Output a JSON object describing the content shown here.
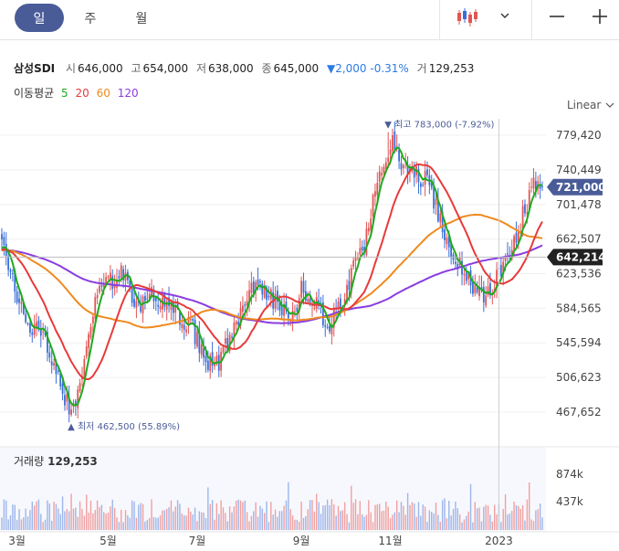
{
  "toolbar": {
    "periods": [
      {
        "label": "일",
        "active": true
      },
      {
        "label": "주",
        "active": false
      },
      {
        "label": "월",
        "active": false
      }
    ],
    "icons": [
      "candlestick-icon",
      "chevron-down-icon",
      "zoom-out-icon",
      "zoom-in-icon"
    ]
  },
  "quote": {
    "name": "삼성SDI",
    "open_label": "시",
    "open": "646,000",
    "high_label": "고",
    "high": "654,000",
    "low_label": "저",
    "low": "638,000",
    "close_label": "종",
    "close": "645,000",
    "change": "▼2,000 -0.31%",
    "volume_label": "거",
    "volume": "129,253"
  },
  "ma": {
    "label": "이동평균",
    "periods": [
      {
        "label": "5",
        "color": "#1faa1f"
      },
      {
        "label": "20",
        "color": "#e83a3a"
      },
      {
        "label": "60",
        "color": "#ef8a1e"
      },
      {
        "label": "120",
        "color": "#8a3de0"
      }
    ]
  },
  "scale_type": "Linear",
  "volume_panel": {
    "label": "거래량",
    "value": "129,253"
  },
  "colors": {
    "up": "#e25555",
    "down": "#3a6fd8",
    "tag_price": "#4a5c98",
    "tag_crosshair": "#222222",
    "accent": "#4a5c98"
  },
  "chart_data": {
    "type": "candlestick",
    "price_axis": {
      "ticks": [
        779420,
        740449,
        701478,
        662507,
        623536,
        584565,
        545594,
        506623,
        467652
      ],
      "tick_labels": [
        "779,420",
        "740,449",
        "701,478",
        "662,507",
        "623,536",
        "584,565",
        "545,594",
        "506,623",
        "467,652"
      ],
      "range": [
        448000,
        798000
      ]
    },
    "volume_axis": {
      "ticks": [
        874000,
        437000
      ],
      "tick_labels": [
        "874k",
        "437k"
      ]
    },
    "x_axis": {
      "tick_labels": [
        "3월",
        "5월",
        "7월",
        "9월",
        "11월",
        "2023"
      ],
      "tick_index": [
        7,
        49,
        90,
        138,
        179,
        229
      ]
    },
    "last_price_tag": {
      "value": 721000,
      "label": "721,000"
    },
    "crosshair_tag": {
      "value": 642214,
      "label": "642,214"
    },
    "annotations": [
      {
        "type": "high",
        "label": "▼ 최고 783,000 (-7.92%)",
        "value": 783000
      },
      {
        "type": "low",
        "label": "▲ 최저 462,500 (55.89%)",
        "value": 462500
      }
    ],
    "close_anchors": [
      {
        "i": 0,
        "v": 662000
      },
      {
        "i": 4,
        "v": 620000
      },
      {
        "i": 10,
        "v": 575000
      },
      {
        "i": 16,
        "v": 560000
      },
      {
        "i": 22,
        "v": 535000
      },
      {
        "i": 28,
        "v": 490000
      },
      {
        "i": 32,
        "v": 470000
      },
      {
        "i": 38,
        "v": 520000
      },
      {
        "i": 44,
        "v": 600000
      },
      {
        "i": 50,
        "v": 615000
      },
      {
        "i": 55,
        "v": 625000
      },
      {
        "i": 60,
        "v": 600000
      },
      {
        "i": 64,
        "v": 585000
      },
      {
        "i": 70,
        "v": 600000
      },
      {
        "i": 76,
        "v": 590000
      },
      {
        "i": 82,
        "v": 575000
      },
      {
        "i": 88,
        "v": 560000
      },
      {
        "i": 95,
        "v": 525000
      },
      {
        "i": 100,
        "v": 525000
      },
      {
        "i": 105,
        "v": 550000
      },
      {
        "i": 110,
        "v": 580000
      },
      {
        "i": 115,
        "v": 605000
      },
      {
        "i": 120,
        "v": 610000
      },
      {
        "i": 128,
        "v": 585000
      },
      {
        "i": 133,
        "v": 570000
      },
      {
        "i": 138,
        "v": 605000
      },
      {
        "i": 144,
        "v": 595000
      },
      {
        "i": 150,
        "v": 565000
      },
      {
        "i": 157,
        "v": 590000
      },
      {
        "i": 163,
        "v": 640000
      },
      {
        "i": 168,
        "v": 665000
      },
      {
        "i": 172,
        "v": 715000
      },
      {
        "i": 176,
        "v": 750000
      },
      {
        "i": 180,
        "v": 770000
      },
      {
        "i": 184,
        "v": 745000
      },
      {
        "i": 190,
        "v": 735000
      },
      {
        "i": 195,
        "v": 730000
      },
      {
        "i": 200,
        "v": 700000
      },
      {
        "i": 204,
        "v": 665000
      },
      {
        "i": 208,
        "v": 640000
      },
      {
        "i": 212,
        "v": 630000
      },
      {
        "i": 218,
        "v": 605000
      },
      {
        "i": 222,
        "v": 595000
      },
      {
        "i": 226,
        "v": 612000
      },
      {
        "i": 230,
        "v": 630000
      },
      {
        "i": 235,
        "v": 650000
      },
      {
        "i": 240,
        "v": 690000
      },
      {
        "i": 245,
        "v": 722000
      },
      {
        "i": 249,
        "v": 721000
      }
    ],
    "bar_count": 250
  }
}
